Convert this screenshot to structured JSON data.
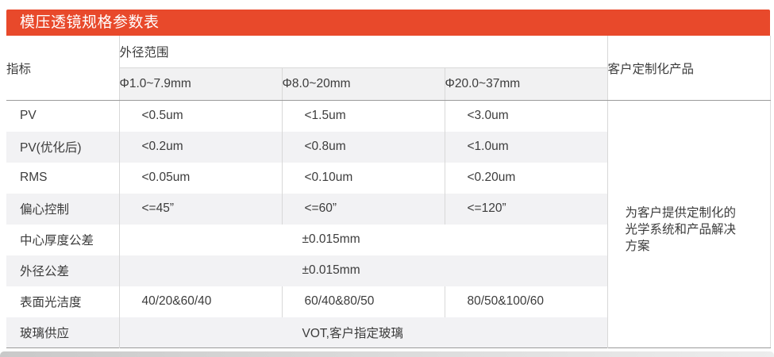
{
  "title": "模压透镜规格参数表",
  "table": {
    "corner_header": "指标",
    "group_header": "外径范围",
    "sub_headers": [
      "Φ1.0~7.9mm",
      "Φ8.0~20mm",
      "Φ20.0~37mm"
    ],
    "right_header": "客户定制化产品",
    "right_note": "为客户提供定制化的光学系统和产品解决方案",
    "rows": [
      {
        "label": "PV",
        "merged": false,
        "values": [
          "<0.5um",
          "<1.5um",
          "<3.0um"
        ]
      },
      {
        "label": "PV(优化后)",
        "merged": false,
        "values": [
          "<0.2um",
          "<0.8um",
          "<1.0um"
        ]
      },
      {
        "label": "RMS",
        "merged": false,
        "values": [
          "<0.05um",
          "<0.10um",
          "<0.20um"
        ]
      },
      {
        "label": "偏心控制",
        "merged": false,
        "values": [
          "<=45”",
          "<=60”",
          "<=120”"
        ]
      },
      {
        "label": "中心厚度公差",
        "merged": true,
        "values": [
          "±0.015mm"
        ]
      },
      {
        "label": "外径公差",
        "merged": true,
        "values": [
          "±0.015mm"
        ]
      },
      {
        "label": "表面光洁度",
        "merged": false,
        "values": [
          "40/20&60/40",
          "60/40&80/50",
          "80/50&100/60"
        ]
      },
      {
        "label": "玻璃供应",
        "merged": true,
        "values": [
          "VOT,客户指定玻璃"
        ]
      }
    ]
  },
  "colors": {
    "accent": "#E8492B",
    "stripe": "#F2F2F4",
    "subheader_bg": "#F1F1F2",
    "border_light": "#D8D8D8",
    "border_heavy": "#9B9B9B",
    "text": "#3C3C3C",
    "title_text": "#FFFFFF"
  }
}
